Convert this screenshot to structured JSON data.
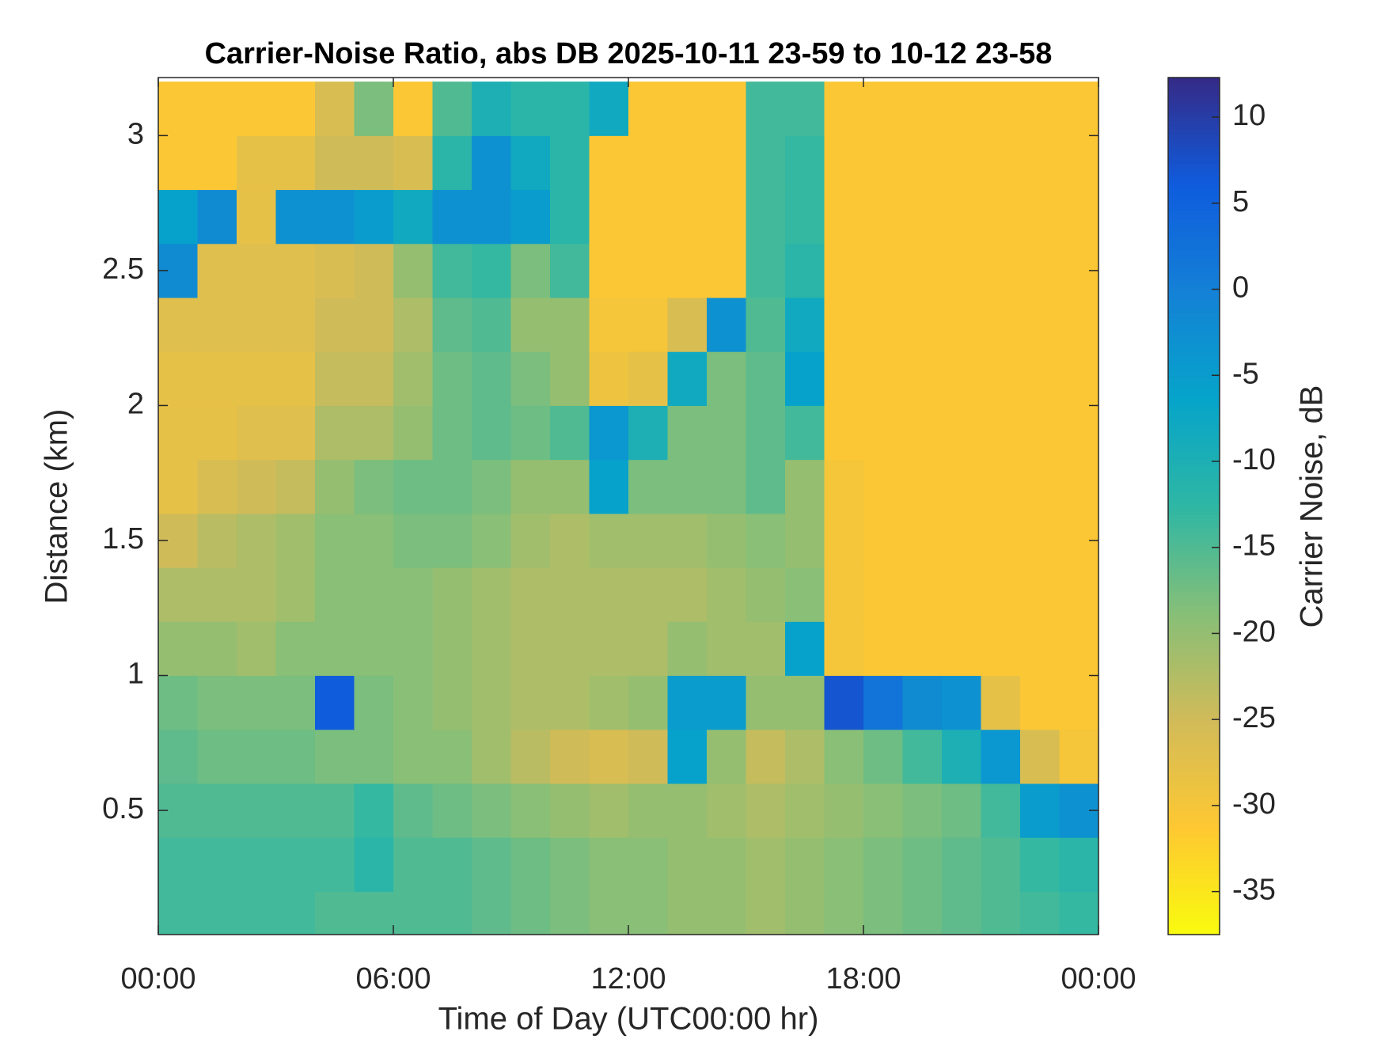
{
  "chart_data": {
    "type": "heatmap",
    "title": "Carrier-Noise Ratio, abs DB 2025-10-11 23-59 to 10-12 23-58",
    "x_label": "Time of Day (UTC00:00 hr)",
    "y_label": "Distance (km)",
    "colorbar_label": "Carrier Noise, dB",
    "xlim": [
      0,
      24
    ],
    "xticks": [
      {
        "value": 0,
        "label": "00:00"
      },
      {
        "value": 6,
        "label": "06:00"
      },
      {
        "value": 12,
        "label": "12:00"
      },
      {
        "value": 18,
        "label": "18:00"
      },
      {
        "value": 24,
        "label": "00:00"
      }
    ],
    "ylim": [
      0.04,
      3.215
    ],
    "yticks": [
      0.5,
      1,
      1.5,
      2,
      2.5,
      3
    ],
    "clim": [
      -37.5,
      12.3
    ],
    "cticks": [
      10,
      5,
      0,
      -5,
      -10,
      -15,
      -20,
      -25,
      -30,
      -35
    ],
    "colormap": [
      "#f9fb0e",
      "#fec832",
      "#d1bb59",
      "#87bf77",
      "#2eb7a4",
      "#06a4ca",
      "#1481d6",
      "#0f5cdd",
      "#352a87"
    ],
    "x": [
      0.5,
      1.5,
      2.5,
      3.5,
      4.5,
      5.5,
      6.5,
      7.5,
      8.5,
      9.5,
      10.5,
      11.5,
      12.5,
      13.5,
      14.5,
      15.5,
      16.5,
      17.5,
      18.5,
      19.5,
      20.5,
      21.5,
      22.5,
      23.5
    ],
    "y": [
      0.1,
      0.3,
      0.5,
      0.7,
      0.9,
      1.1,
      1.3,
      1.5,
      1.7,
      1.9,
      2.1,
      2.3,
      2.5,
      2.7,
      2.9,
      3.1
    ],
    "z": [
      [
        -14,
        -14,
        -14,
        -14,
        -15,
        -15,
        -15,
        -15,
        -16,
        -17,
        -18,
        -19,
        -19,
        -20,
        -20,
        -21,
        -20,
        -19,
        -18,
        -17,
        -16,
        -15,
        -14,
        -13
      ],
      [
        -14,
        -14,
        -14,
        -14,
        -14,
        -12,
        -15,
        -15,
        -16,
        -17,
        -18,
        -19,
        -19,
        -20,
        -20,
        -21,
        -20,
        -19,
        -18,
        -17,
        -16,
        -15,
        -13,
        -12
      ],
      [
        -15,
        -15,
        -15,
        -15,
        -15,
        -13,
        -16,
        -17,
        -18,
        -19,
        -20,
        -21,
        -20,
        -20,
        -21,
        -22,
        -21,
        -20,
        -19,
        -18,
        -17,
        -14,
        -5,
        -3
      ],
      [
        -16,
        -17,
        -17,
        -17,
        -18,
        -18,
        -19,
        -19,
        -21,
        -23,
        -25,
        -26,
        -25,
        -6,
        -20,
        -24,
        -22,
        -19,
        -17,
        -14,
        -10,
        -4,
        -26,
        -30
      ],
      [
        -17,
        -18,
        -18,
        -18,
        6,
        -18,
        -19,
        -20,
        -21,
        -22,
        -22,
        -21,
        -20,
        -5,
        -5,
        -20,
        -20,
        7,
        2,
        -2,
        -3,
        -28,
        -31,
        -31
      ],
      [
        -20,
        -20,
        -21,
        -19,
        -19,
        -19,
        -19,
        -20,
        -21,
        -22,
        -22,
        -22,
        -22,
        -20,
        -21,
        -21,
        -6,
        -30,
        -31,
        -31,
        -31,
        -31,
        -31,
        -31
      ],
      [
        -22,
        -22,
        -22,
        -21,
        -19,
        -19,
        -19,
        -20,
        -21,
        -22,
        -22,
        -22,
        -22,
        -22,
        -21,
        -20,
        -19,
        -30,
        -31,
        -31,
        -31,
        -31,
        -31,
        -31
      ],
      [
        -25,
        -23,
        -22,
        -21,
        -19,
        -19,
        -18,
        -18,
        -19,
        -21,
        -22,
        -21,
        -21,
        -21,
        -20,
        -19,
        -20,
        -30,
        -31,
        -31,
        -31,
        -31,
        -31,
        -31
      ],
      [
        -28,
        -26,
        -25,
        -24,
        -20,
        -18,
        -17,
        -17,
        -18,
        -20,
        -20,
        -6,
        -18,
        -18,
        -18,
        -16,
        -20,
        -30,
        -31,
        -31,
        -31,
        -31,
        -31,
        -31
      ],
      [
        -28,
        -28,
        -27,
        -27,
        -22,
        -22,
        -20,
        -17,
        -16,
        -17,
        -15,
        -4,
        -10,
        -18,
        -18,
        -16,
        -14,
        -31,
        -31,
        -31,
        -31,
        -31,
        -31,
        -31
      ],
      [
        -28,
        -28,
        -28,
        -28,
        -24,
        -24,
        -21,
        -17,
        -16,
        -18,
        -20,
        -29,
        -28,
        -8,
        -18,
        -16,
        -6,
        -31,
        -31,
        -31,
        -31,
        -31,
        -31,
        -31
      ],
      [
        -27,
        -27,
        -27,
        -27,
        -25,
        -25,
        -22,
        -16,
        -15,
        -20,
        -20,
        -30,
        -30,
        -26,
        -3,
        -15,
        -8,
        -31,
        -31,
        -31,
        -31,
        -31,
        -31,
        -31
      ],
      [
        -2,
        -27,
        -27,
        -27,
        -26,
        -25,
        -20,
        -14,
        -13,
        -18,
        -14,
        -31,
        -31,
        -31,
        -31,
        -14,
        -12,
        -31,
        -31,
        -31,
        -31,
        -31,
        -31,
        -31
      ],
      [
        -6,
        -2,
        -28,
        -3,
        -3,
        -5,
        -8,
        -3,
        -3,
        -5,
        -12,
        -31,
        -31,
        -31,
        -31,
        -14,
        -13,
        -31,
        -31,
        -31,
        -31,
        -31,
        -31,
        -31
      ],
      [
        -31,
        -31,
        -28,
        -28,
        -25,
        -25,
        -26,
        -12,
        -3,
        -8,
        -12,
        -31,
        -31,
        -31,
        -31,
        -14,
        -13,
        -31,
        -31,
        -31,
        -31,
        -31,
        -31,
        -31
      ],
      [
        -31,
        -31,
        -31,
        -31,
        -26,
        -18,
        -31,
        -15,
        -10,
        -12,
        -12,
        -8,
        -31,
        -31,
        -31,
        -14,
        -14,
        -31,
        -31,
        -31,
        -31,
        -31,
        -31,
        -31
      ]
    ]
  }
}
